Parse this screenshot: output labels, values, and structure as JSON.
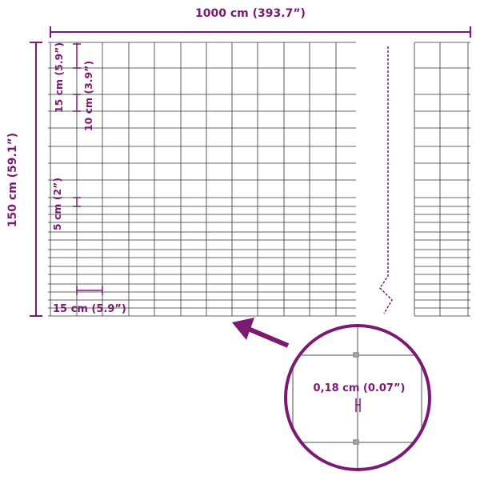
{
  "colors": {
    "accent": "#7a1a72",
    "grid": "#333333",
    "detail_grid": "#8a8a8a"
  },
  "dimensions": {
    "width": "1000 cm (393.7”)",
    "height": "150 cm (59.1”)",
    "top_mesh_height": "15 cm (5.9”)",
    "middle_mesh_height": "10 cm (3.9”)",
    "bottom_mesh_height": "5 cm (2”)",
    "mesh_width": "15 cm (5.9”)",
    "wire_diameter": "0,18 cm (0.07”)"
  },
  "icons": {
    "pointer": "arrow-icon",
    "detail": "magnifier-circle"
  }
}
